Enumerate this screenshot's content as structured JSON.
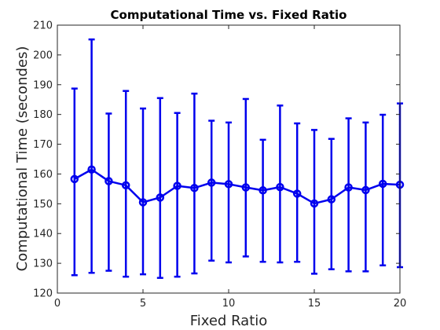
{
  "chart_data": {
    "type": "line",
    "title": "Computational Time vs. Fixed Ratio",
    "xlabel": "Fixed Ratio",
    "ylabel": "Computational Time (secondes)",
    "xlim": [
      0,
      20
    ],
    "ylim": [
      120,
      210
    ],
    "x_ticks": [
      0,
      5,
      10,
      15,
      20
    ],
    "y_ticks": [
      120,
      130,
      140,
      150,
      160,
      170,
      180,
      190,
      200,
      210
    ],
    "grid": false,
    "legend": "none",
    "series": [
      {
        "color": "#0000ee",
        "error_bars": true,
        "x": [
          1,
          2,
          3,
          4,
          5,
          6,
          7,
          8,
          9,
          10,
          11,
          12,
          13,
          14,
          15,
          16,
          17,
          18,
          19,
          20
        ],
        "values": [
          158.3,
          161.5,
          157.6,
          156.2,
          150.5,
          152.1,
          156.0,
          155.3,
          157.1,
          156.6,
          155.5,
          154.5,
          155.6,
          153.4,
          150.1,
          151.5,
          155.5,
          154.6,
          156.7,
          156.4
        ],
        "upper": [
          188.7,
          205.2,
          180.3,
          187.9,
          182.0,
          185.5,
          180.5,
          187.0,
          177.9,
          177.3,
          185.2,
          171.5,
          183.0,
          177.0,
          174.8,
          171.8,
          178.7,
          177.3,
          179.9,
          183.7
        ],
        "lower": [
          126.0,
          126.8,
          127.5,
          125.5,
          126.3,
          125.1,
          125.5,
          126.6,
          130.9,
          130.3,
          132.3,
          130.5,
          130.3,
          130.5,
          126.5,
          128.0,
          127.3,
          127.3,
          129.3,
          128.7
        ]
      }
    ]
  }
}
